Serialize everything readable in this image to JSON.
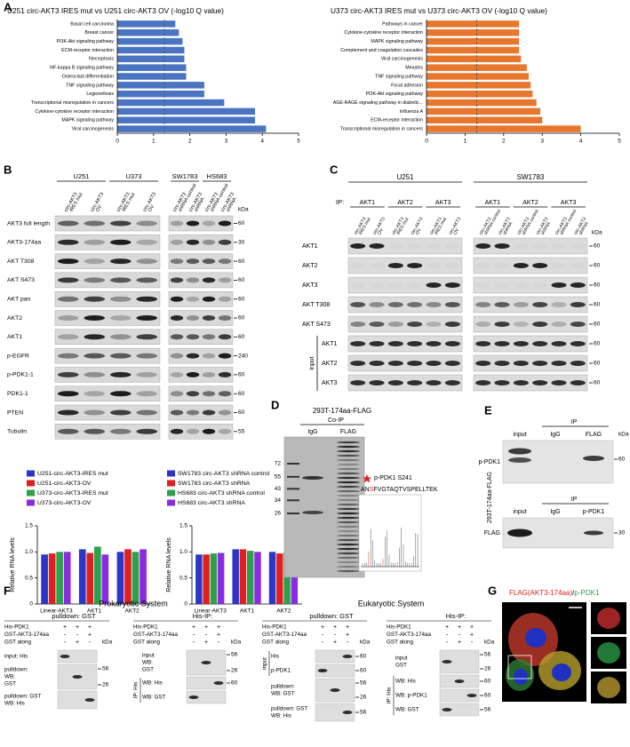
{
  "chart_data": [
    {
      "type": "barh",
      "title": "U251 circ-AKT3 IRES mut vs U251 circ-AKT3 OV (-log10 Q value)",
      "categories": [
        "Basal cell carcinoma",
        "Breast cancer",
        "PI3K-Akt signaling pathway",
        "ECM-receptor interaction",
        "Necroptosis",
        "NF-kappa B signaling pathway",
        "Osteoclast differentiation",
        "TNF signaling pathway",
        "Legionellosis",
        "Transcriptional misregulation in cancers",
        "Cytokine-cytokine receptor interaction",
        "MAPK signaling pathway",
        "Viral carcinogenesis"
      ],
      "values": [
        1.6,
        1.7,
        1.8,
        1.85,
        1.85,
        1.9,
        1.9,
        2.4,
        2.4,
        2.95,
        3.8,
        3.8,
        4.1
      ],
      "color": "#4a74c2",
      "xlim": [
        0,
        5
      ],
      "xticks": [
        0,
        1,
        2,
        3,
        4,
        5
      ],
      "reference_x": 1.3
    },
    {
      "type": "barh",
      "title": "U373 circ-AKT3 IRES mut vs U373 circ-AKT3 OV (-log10 Q value)",
      "categories": [
        "Pathways in cancer",
        "Cytokine-cytokine receptor interaction",
        "MAPK signaling pathway",
        "Complement and coagulation cascades",
        "Viral carcinogenesis",
        "Measles",
        "TNF signaling pathway",
        "Focal adhesion",
        "PI3K-Akt signaling pathway",
        "AGE-RAGE signaling pathway in diabetic...",
        "Influenza A",
        "ECM-receptor interaction",
        "Transcriptional misregulation in cancers"
      ],
      "values": [
        2.4,
        2.4,
        2.4,
        2.4,
        2.45,
        2.6,
        2.65,
        2.7,
        2.75,
        2.85,
        2.95,
        3.0,
        4.0
      ],
      "color": "#e8772e",
      "xlim": [
        0,
        5
      ],
      "xticks": [
        0,
        1,
        2,
        3,
        4,
        5
      ],
      "reference_x": 1.3
    },
    {
      "type": "bar",
      "y_label": "Relative RNA levels",
      "categories": [
        "Linear-AKT3",
        "AKT1",
        "AKT2"
      ],
      "series": [
        {
          "name": "U251-circ-AKT3-IRES mut",
          "color": "#2b35c8",
          "values": [
            0.95,
            1.05,
            1.0
          ]
        },
        {
          "name": "U251-circ-AKT3-OV",
          "color": "#e02020",
          "values": [
            0.97,
            0.98,
            1.05
          ]
        },
        {
          "name": "U373-circ-AKT3-IRES mut",
          "color": "#2ea04a",
          "values": [
            1.0,
            1.1,
            1.0
          ]
        },
        {
          "name": "U373-circ-AKT3-OV",
          "color": "#8a2be2",
          "values": [
            1.0,
            0.95,
            1.05
          ]
        }
      ],
      "ylim": [
        0,
        1.5
      ],
      "yticks": [
        0,
        0.5,
        {
          "value": 1,
          "label": "1.0"
        },
        1.5
      ]
    },
    {
      "type": "bar",
      "y_label": "Relative RNA levels",
      "categories": [
        "Linear-AKT3",
        "AKT1",
        "AKT2"
      ],
      "series": [
        {
          "name": "SW1783 circ-AKT3 shRNA control",
          "color": "#2b35c8",
          "values": [
            0.95,
            1.05,
            1.0
          ]
        },
        {
          "name": "SW1783 circ-AKT3 shRNA",
          "color": "#e02020",
          "values": [
            0.95,
            1.05,
            0.97
          ]
        },
        {
          "name": "HS683 circ-AKT3 shRNA control",
          "color": "#2ea04a",
          "values": [
            0.97,
            1.02,
            1.0
          ]
        },
        {
          "name": "HS683 circ-AKT3 shRNA",
          "color": "#8a2be2",
          "values": [
            0.98,
            1.0,
            1.05
          ]
        }
      ],
      "ylim": [
        0,
        1.5
      ],
      "yticks": [
        0,
        0.5,
        {
          "value": 1,
          "label": "1.0"
        },
        1.5
      ]
    }
  ],
  "panel_labels": [
    "A",
    "B",
    "C",
    "D",
    "E",
    "F",
    "G"
  ],
  "panel_b": {
    "left_cells": [
      "U251",
      "U373"
    ],
    "left_lanes": [
      [
        "circ-AKT3",
        "IRES mut"
      ],
      [
        "circ-AKT3",
        "OV"
      ],
      [
        "circ-AKT3",
        "IRES mut"
      ],
      [
        "circ-AKT3",
        "OV"
      ]
    ],
    "right_cells": [
      "SW1783",
      "HS683"
    ],
    "right_lanes": [
      [
        "circ-AKT3",
        "shRNA control"
      ],
      [
        "circ-AKT3",
        "shRNA"
      ],
      [
        "circ-AKT3",
        "shRNA control"
      ],
      [
        "circ-AKT3",
        "shRNA"
      ]
    ],
    "kda_header": "kDa",
    "rows": [
      {
        "label": "AKT3 full length",
        "kda": 60
      },
      {
        "label": "AKT3-174aa",
        "kda": 30
      },
      {
        "label": "AKT T308",
        "kda": 60
      },
      {
        "label": "AKT S473",
        "kda": 60
      },
      {
        "label": "AKT pan",
        "kda": 60
      },
      {
        "label": "AKT2",
        "kda": 60
      },
      {
        "label": "AKT1",
        "kda": 60
      },
      {
        "label": "p-EGFR",
        "kda": 240
      },
      {
        "label": "p-PDK1-1",
        "kda": 60
      },
      {
        "label": "PDK1-1",
        "kda": 60
      },
      {
        "label": "PTEN",
        "kda": 60
      },
      {
        "label": "Tubulin",
        "kda": 55
      }
    ]
  },
  "panel_c": {
    "ip_label": "IP:",
    "cells": [
      {
        "name": "U251",
        "lanes": [
          [
            "circ-AKT3",
            "IRES mut"
          ],
          [
            "circ-AKT3",
            "OV"
          ]
        ]
      },
      {
        "name": "SW1783",
        "lanes": [
          [
            "circ-AKT3",
            "shRNA control"
          ],
          [
            "circ-AKT3",
            "shRNA"
          ]
        ]
      }
    ],
    "ip_groups": [
      "AKT1",
      "AKT2",
      "AKT3"
    ],
    "rows": [
      "AKT1",
      "AKT2",
      "AKT3",
      "AKT T308",
      "AKT S473"
    ],
    "input_label": "input",
    "input_rows": [
      "AKT1",
      "AKT2",
      "AKT3"
    ],
    "kda_header": "kDa",
    "kda": 60
  },
  "panel_d": {
    "title": "293T-174aa-FLAG",
    "subtitle": "Co-IP",
    "lanes": [
      "IgG",
      "FLAG"
    ],
    "markers": [
      72,
      55,
      43,
      34,
      26
    ],
    "band_label": "p-PDK1 S241",
    "peptide": [
      "AN",
      "S",
      "FVGTAQTVSPELLTEK"
    ]
  },
  "panel_e": {
    "kda_header": "kDa",
    "side_label": "293T-174aa-FLAG",
    "blocks": [
      {
        "ip": "IP",
        "lanes": [
          "input",
          "IgG",
          "FLAG"
        ],
        "row": "p-PDK1",
        "kda": 60
      },
      {
        "ip": "IP",
        "lanes": [
          "input",
          "IgG",
          "p-PDK1"
        ],
        "row": "FLAG",
        "kda": 30
      }
    ]
  },
  "panel_f": {
    "kda_header": "kDa",
    "systems": [
      {
        "title": "Prokaryotic System",
        "blocks": [
          {
            "title": "pulldown: GST",
            "conditions": [
              {
                "name": "His-PDK1",
                "marks": [
                  "+",
                  "+",
                  "+"
                ]
              },
              {
                "name": "GST-AKT3-174aa",
                "marks": [
                  "-",
                  "-",
                  "+"
                ]
              },
              {
                "name": "GST along",
                "marks": [
                  "-",
                  "+",
                  "-"
                ]
              }
            ],
            "rows": [
              {
                "label": [
                  "input: His"
                ],
                "kda": []
              },
              {
                "label": [
                  "pulldown:",
                  "WB:",
                  "GST"
                ],
                "kda": [
                  56,
                  26
                ]
              },
              {
                "label": [
                  "pulldown: GST",
                  "WB: His"
                ],
                "kda": []
              }
            ]
          },
          {
            "title": "His-IP:",
            "side_label": "IP: His",
            "conditions": [
              {
                "name": "His-PDK1",
                "marks": [
                  "+",
                  "+",
                  "+"
                ]
              },
              {
                "name": "GST-AKT3-174aa",
                "marks": [
                  "-",
                  "-",
                  "+"
                ]
              },
              {
                "name": "GST along",
                "marks": [
                  "-",
                  "+",
                  "-"
                ]
              }
            ],
            "rows": [
              {
                "label": [
                  "input",
                  "WB:",
                  "GST"
                ],
                "kda": [
                  56,
                  26
                ]
              },
              {
                "label": [
                  "WB: His"
                ],
                "kda": [
                  60
                ]
              },
              {
                "label": [
                  "WB: GST"
                ],
                "kda": []
              }
            ]
          }
        ]
      },
      {
        "title": "Eukaryotic System",
        "blocks": [
          {
            "title": "pulldown: GST",
            "side_label": "input",
            "conditions": [
              {
                "name": "His-PDK1",
                "marks": [
                  "+",
                  "+",
                  "+"
                ]
              },
              {
                "name": "GST-AKT3-174aa",
                "marks": [
                  "-",
                  "-",
                  "+"
                ]
              },
              {
                "name": "GST along",
                "marks": [
                  "-",
                  "+",
                  "-"
                ]
              }
            ],
            "rows": [
              {
                "label": [
                  "His"
                ],
                "kda": [
                  60
                ]
              },
              {
                "label": [
                  "p-PDK1"
                ],
                "kda": [
                  60
                ]
              },
              {
                "label": [
                  "pulldown:",
                  "WB: GST"
                ],
                "kda": [
                  56,
                  26
                ]
              },
              {
                "label": [
                  "pulldown: GST",
                  "WB: His"
                ],
                "kda": [
                  56
                ]
              }
            ]
          },
          {
            "title": "His-IP:",
            "side_label": "IP: His",
            "conditions": [
              {
                "name": "His-PDK1",
                "marks": [
                  "+",
                  "+",
                  "+"
                ]
              },
              {
                "name": "GST-AKT3-174aa",
                "marks": [
                  "-",
                  "-",
                  "+"
                ]
              },
              {
                "name": "GST along",
                "marks": [
                  "-",
                  "+",
                  "-"
                ]
              }
            ],
            "rows": [
              {
                "label": [
                  "input",
                  "GST"
                ],
                "kda": [
                  56,
                  26
                ]
              },
              {
                "label": [
                  "WB: His"
                ],
                "kda": [
                  60
                ]
              },
              {
                "label": [
                  "WB: p-PDK1"
                ],
                "kda": [
                  60
                ]
              },
              {
                "label": [
                  "WB: GST"
                ],
                "kda": [
                  56
                ]
              }
            ]
          }
        ]
      }
    ]
  },
  "panel_g": {
    "title": [
      "FLAG(AKT3-174aa)",
      "/",
      "p-PDK1"
    ]
  }
}
